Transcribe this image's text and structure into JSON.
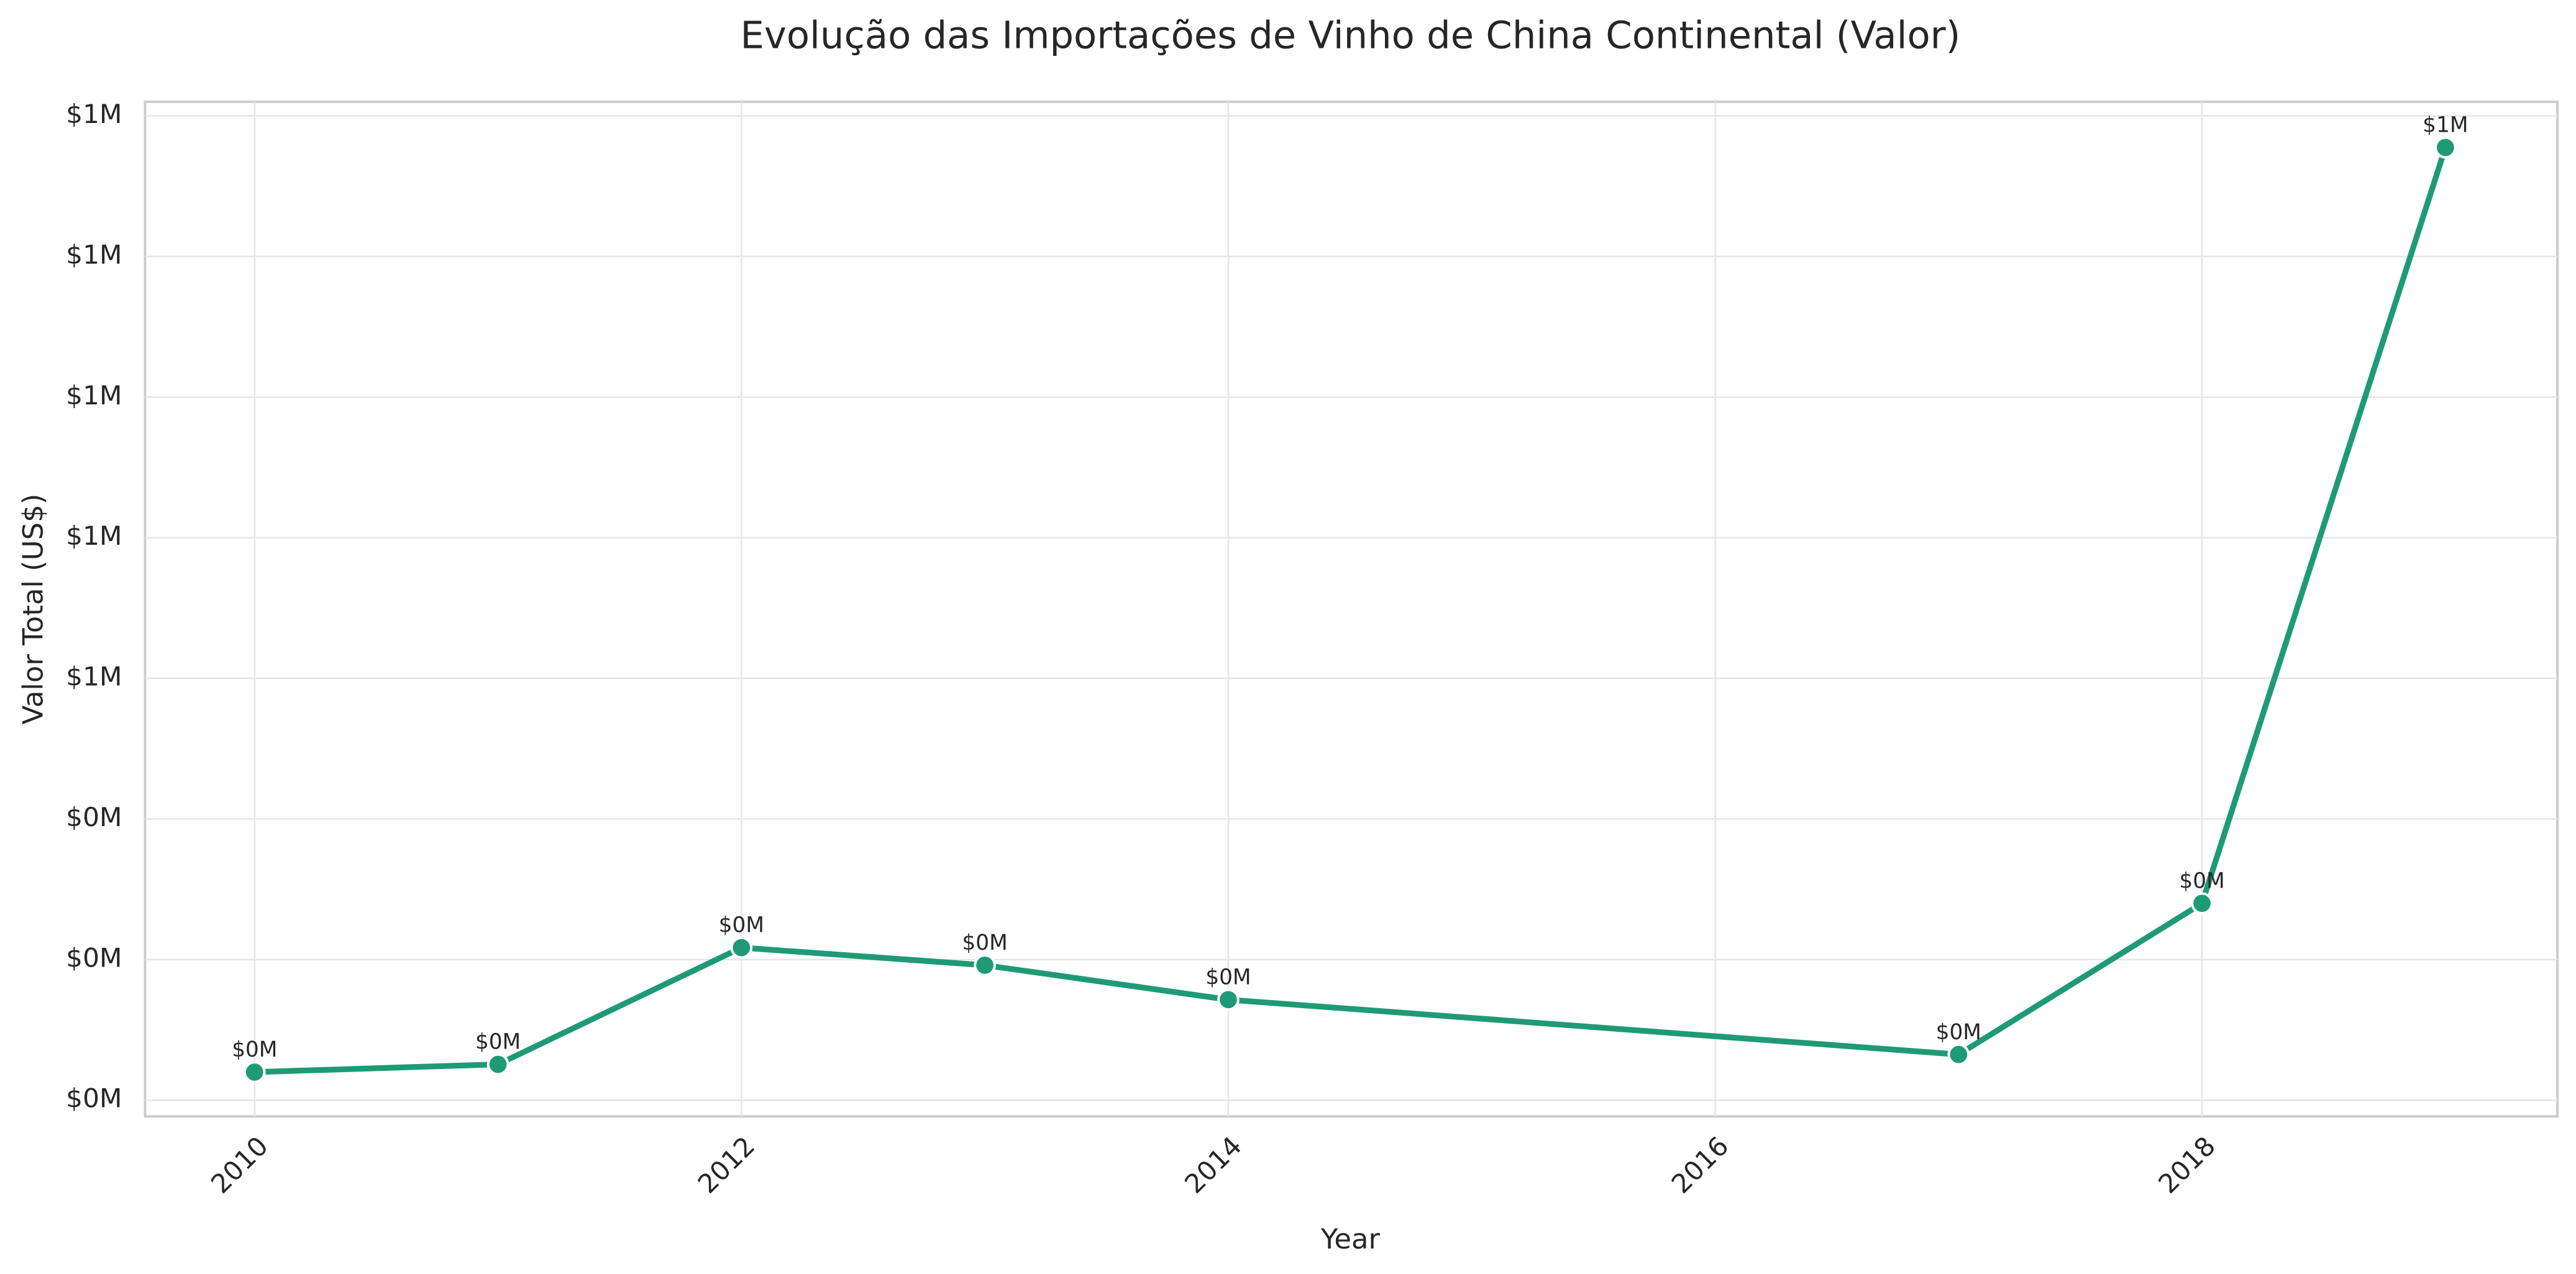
{
  "chart_data": {
    "type": "line",
    "title": "Evolução das Importações de Vinho de China Continental (Valor)",
    "x_label": "Year",
    "y_label": "Valor Total (US$)",
    "x": [
      2010,
      2011,
      2012,
      2013,
      2014,
      2017,
      2018,
      2019
    ],
    "series": [
      {
        "color": "#1f9a76",
        "values": [
          40000,
          51000,
          217000,
          192000,
          143000,
          65000,
          280000,
          1355000
        ],
        "value_labels": [
          "$0M",
          "$0M",
          "$0M",
          "$0M",
          "$0M",
          "$0M",
          "$0M",
          "$1M"
        ]
      }
    ],
    "xlim": [
      2009.55,
      2019.46
    ],
    "xticks": [
      2010,
      2012,
      2014,
      2016,
      2018
    ],
    "ylim": [
      -23000,
      1420000
    ],
    "yticks": [
      {
        "value": 0,
        "label": "$0M"
      },
      {
        "value": 200000,
        "label": "$0M"
      },
      {
        "value": 400000,
        "label": "$0M"
      },
      {
        "value": 600000,
        "label": "$1M"
      },
      {
        "value": 800000,
        "label": "$1M"
      },
      {
        "value": 1000000,
        "label": "$1M"
      },
      {
        "value": 1200000,
        "label": "$1M"
      },
      {
        "value": 1400000,
        "label": "$1M"
      }
    ],
    "grid": true
  }
}
